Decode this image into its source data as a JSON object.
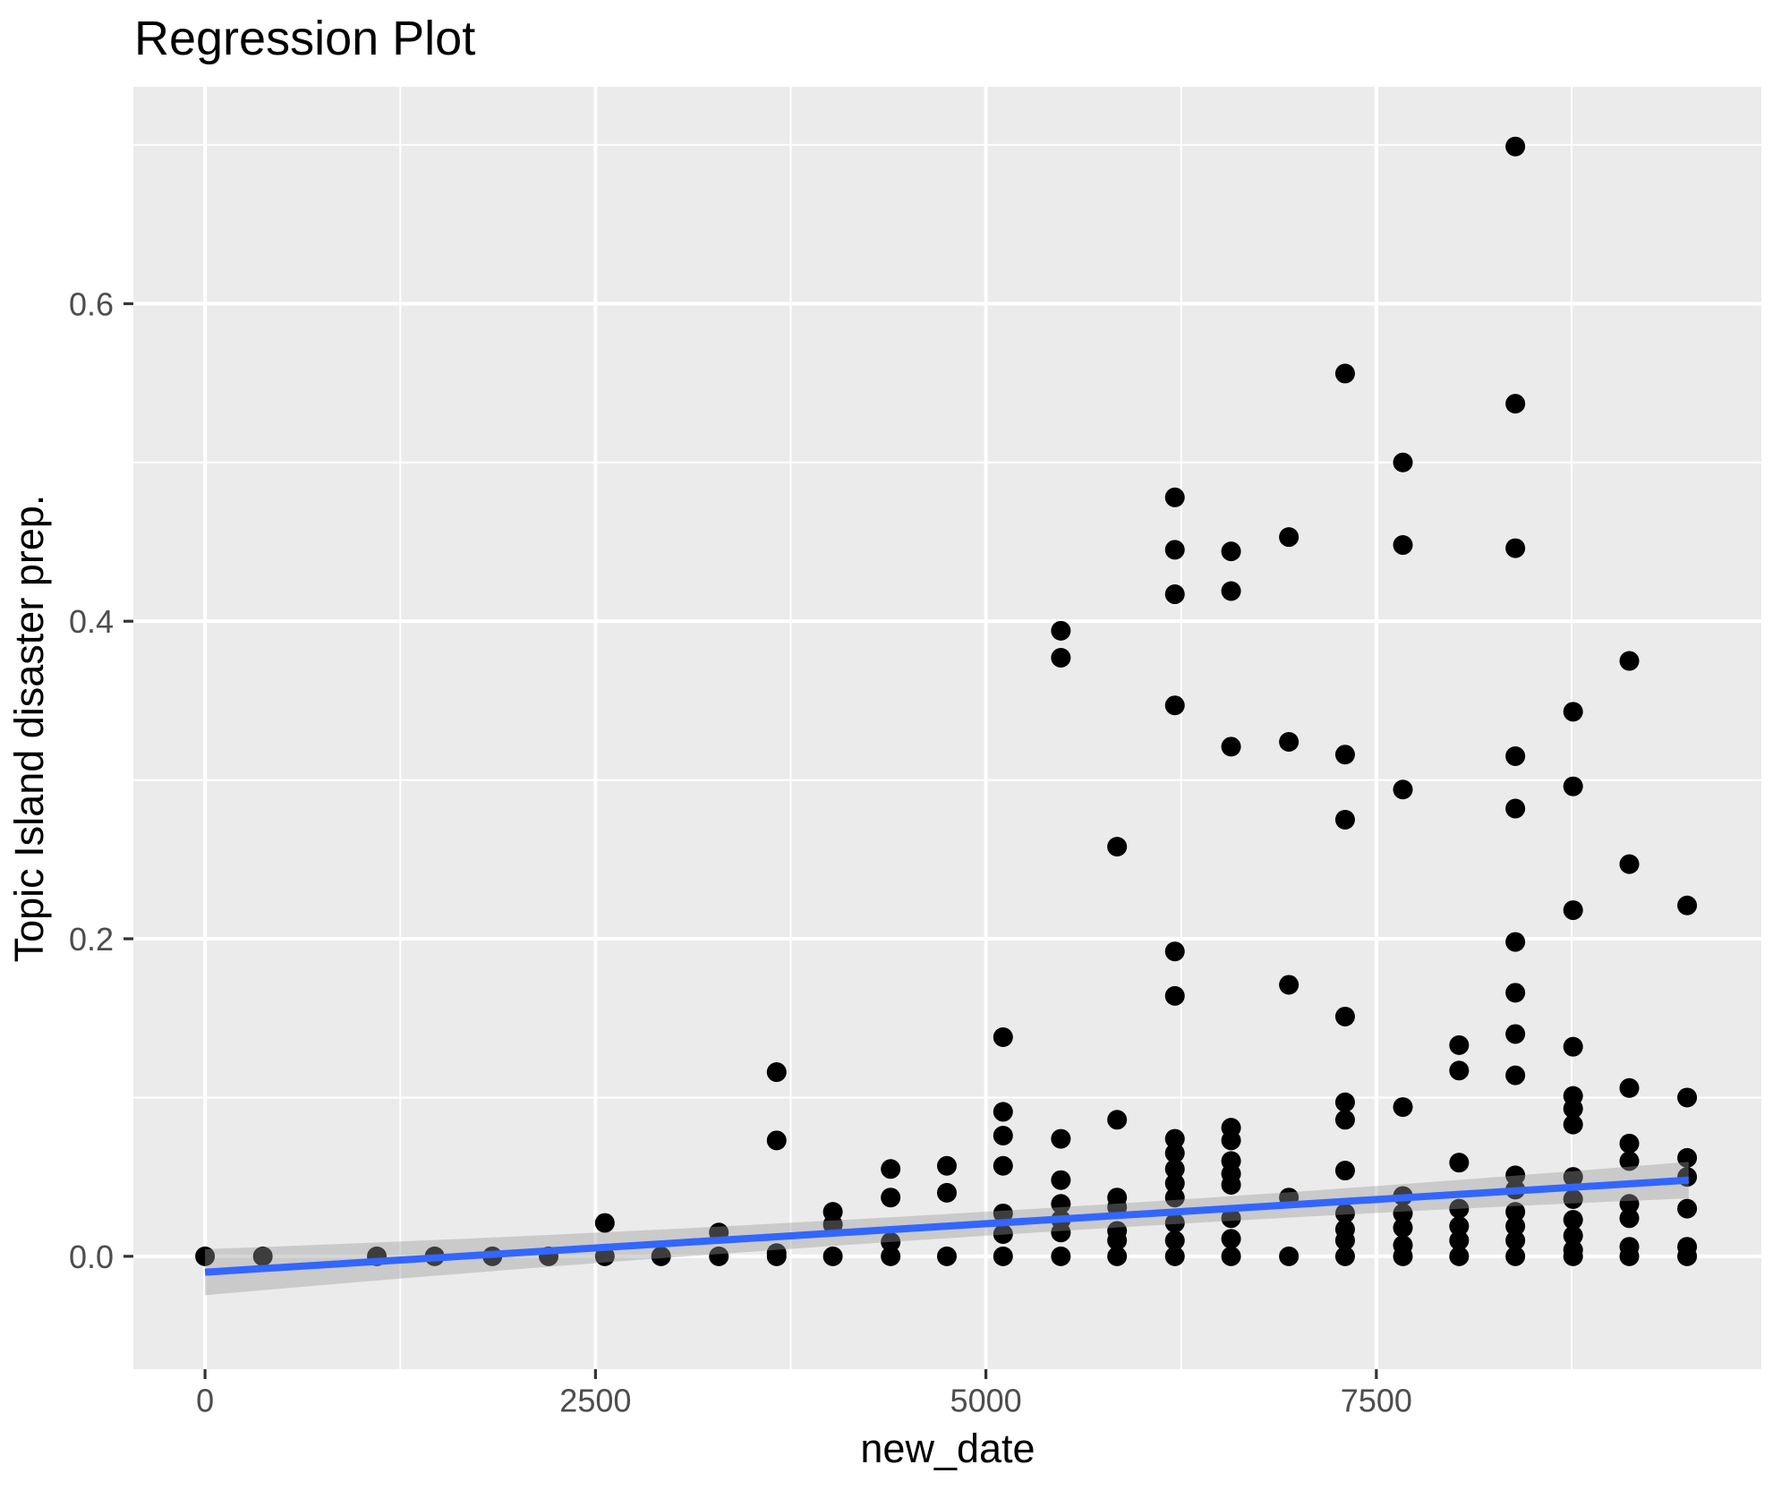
{
  "title": "Regression Plot",
  "chart_data": {
    "type": "scatter",
    "title": "Regression Plot",
    "xlabel": "new_date",
    "ylabel": "Topic Island disaster prep.",
    "x_ticks": [
      0,
      2500,
      5000,
      7500
    ],
    "x_tick_labels": [
      "0",
      "2500",
      "5000",
      "7500"
    ],
    "y_ticks": [
      0.0,
      0.2,
      0.4,
      0.6
    ],
    "y_tick_labels": [
      "0.0",
      "0.2",
      "0.4",
      "0.6"
    ],
    "x_minor_ticks": [
      1250,
      3750,
      6250,
      8750
    ],
    "y_minor_ticks": [
      0.1,
      0.3,
      0.5,
      0.7
    ],
    "xlim": [
      -459,
      9965
    ],
    "ylim": [
      -0.0711,
      0.7366
    ],
    "grid": true,
    "legend": false,
    "points_by_x": [
      {
        "x": 0,
        "ys": [
          0.0
        ]
      },
      {
        "x": 370,
        "ys": [
          0.0
        ]
      },
      {
        "x": 1100,
        "ys": [
          0.0
        ]
      },
      {
        "x": 1470,
        "ys": [
          0.0
        ]
      },
      {
        "x": 1840,
        "ys": [
          0.0
        ]
      },
      {
        "x": 2200,
        "ys": [
          0.0
        ]
      },
      {
        "x": 2560,
        "ys": [
          0.021,
          0.0
        ]
      },
      {
        "x": 2920,
        "ys": [
          0.0
        ]
      },
      {
        "x": 3290,
        "ys": [
          0.015,
          0.0
        ]
      },
      {
        "x": 3660,
        "ys": [
          0.116,
          0.073,
          0.002,
          0.0
        ]
      },
      {
        "x": 4020,
        "ys": [
          0.028,
          0.02,
          0.0
        ]
      },
      {
        "x": 4390,
        "ys": [
          0.055,
          0.037,
          0.009,
          0.0
        ]
      },
      {
        "x": 4750,
        "ys": [
          0.057,
          0.04,
          0.0
        ]
      },
      {
        "x": 5110,
        "ys": [
          0.138,
          0.091,
          0.076,
          0.057,
          0.027,
          0.014,
          0.0
        ]
      },
      {
        "x": 5480,
        "ys": [
          0.394,
          0.377,
          0.074,
          0.048,
          0.033,
          0.023,
          0.015,
          0.0
        ]
      },
      {
        "x": 5840,
        "ys": [
          0.258,
          0.086,
          0.037,
          0.031,
          0.016,
          0.01,
          0.0
        ]
      },
      {
        "x": 6210,
        "ys": [
          0.478,
          0.445,
          0.417,
          0.347,
          0.192,
          0.164,
          0.074,
          0.065,
          0.055,
          0.046,
          0.037,
          0.021,
          0.01,
          0.0
        ]
      },
      {
        "x": 6570,
        "ys": [
          0.444,
          0.419,
          0.321,
          0.081,
          0.073,
          0.06,
          0.052,
          0.045,
          0.024,
          0.011,
          0.0
        ]
      },
      {
        "x": 6940,
        "ys": [
          0.453,
          0.324,
          0.171,
          0.037,
          0.0
        ]
      },
      {
        "x": 7300,
        "ys": [
          0.556,
          0.316,
          0.275,
          0.151,
          0.097,
          0.086,
          0.054,
          0.027,
          0.017,
          0.01,
          0.0
        ]
      },
      {
        "x": 7670,
        "ys": [
          0.5,
          0.448,
          0.294,
          0.094,
          0.038,
          0.027,
          0.018,
          0.007,
          0.0
        ]
      },
      {
        "x": 8030,
        "ys": [
          0.133,
          0.117,
          0.059,
          0.03,
          0.019,
          0.01,
          0.0
        ]
      },
      {
        "x": 8390,
        "ys": [
          0.699,
          0.537,
          0.446,
          0.315,
          0.282,
          0.198,
          0.166,
          0.14,
          0.114,
          0.051,
          0.042,
          0.028,
          0.019,
          0.01,
          0.0
        ]
      },
      {
        "x": 8760,
        "ys": [
          0.343,
          0.296,
          0.218,
          0.132,
          0.101,
          0.093,
          0.083,
          0.05,
          0.036,
          0.023,
          0.013,
          0.004,
          0.0
        ]
      },
      {
        "x": 9120,
        "ys": [
          0.375,
          0.247,
          0.106,
          0.071,
          0.06,
          0.033,
          0.024,
          0.006,
          0.0
        ]
      },
      {
        "x": 9490,
        "ys": [
          0.221,
          0.1,
          0.062,
          0.05,
          0.03,
          0.006,
          0.0
        ]
      }
    ],
    "regression_line": {
      "x_start": 0,
      "y_start": -0.01,
      "x_end": 9500,
      "y_end": 0.048
    },
    "ci_band": {
      "x_start": 0,
      "x_end": 9500,
      "halfwidth_start": 0.0145,
      "halfwidth_mid": 0.0075,
      "halfwidth_end": 0.0115,
      "t_min_width": 0.58
    },
    "colors": {
      "point": "#000000",
      "line": "#3366FF",
      "band": "rgba(153,153,153,0.40)",
      "panel_bg": "#EBEBEB",
      "grid": "#FFFFFF",
      "tick_text": "#4D4D4D",
      "title_text": "#000000",
      "tick_mark": "#333333"
    }
  }
}
